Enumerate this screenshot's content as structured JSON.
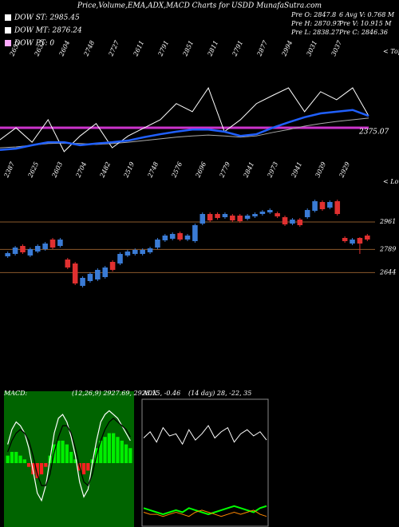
{
  "title": "Price,Volume,EMA,ADX,MACD Charts for USDD MunafaSutra.com",
  "legend": [
    {
      "label": "DOW ST: 2985.45",
      "color": "#ffffff"
    },
    {
      "label": "DOW MT: 2876.24",
      "color": "#ffffff"
    },
    {
      "label": "DOW PT: 0",
      "color": "#ffaaff"
    }
  ],
  "info": [
    "Pre O: 2847.8",
    "6 Avg V: 0.768 M",
    "Pre H: 2870.97",
    "Pre V: 10.915 M",
    "Pre L: 2838.27",
    "Pre C: 2846.36"
  ],
  "chart_data": [
    {
      "type": "line",
      "ylim": [
        2300,
        2563
      ],
      "series": [
        {
          "color": "#aaaaaa",
          "values": [
            2328,
            2330,
            2334,
            2338,
            2339,
            2338,
            2336,
            2338,
            2341,
            2345,
            2349,
            2353,
            2356,
            2358,
            2356,
            2353,
            2356,
            2364,
            2371,
            2379,
            2385,
            2390,
            2394,
            2398
          ]
        },
        {
          "color": "#ffffff",
          "values": [
            2347,
            2375,
            2341,
            2394,
            2319,
            2356,
            2385,
            2328,
            2356,
            2375,
            2394,
            2432,
            2413,
            2469,
            2366,
            2394,
            2432,
            2451,
            2469,
            2413,
            2460,
            2441,
            2469,
            2403
          ]
        },
        {
          "color": "#2060ff",
          "values": [
            2323,
            2326,
            2334,
            2341,
            2341,
            2334,
            2338,
            2341,
            2345,
            2353,
            2360,
            2366,
            2371,
            2371,
            2366,
            2356,
            2360,
            2375,
            2388,
            2400,
            2409,
            2413,
            2417,
            2403
          ]
        }
      ],
      "hline": {
        "value": 2375.07,
        "color": "#cc33cc"
      },
      "tops": [
        2652,
        2632,
        2604,
        2748,
        2727,
        2611,
        2791,
        2851,
        2811,
        2791,
        2877,
        2994,
        3031,
        3037
      ],
      "tops_label": "< Tops"
    },
    {
      "type": "candlestick",
      "ylim": [
        2476,
        3226
      ],
      "yticks": [
        2961,
        2789,
        2644
      ],
      "grid": true,
      "grid_color": "#8b5a2b",
      "up_color": "#3a7bd5",
      "down_color": "#e03030",
      "candles": [
        [
          2746,
          2776,
          2736,
          2766
        ],
        [
          2761,
          2811,
          2751,
          2801
        ],
        [
          2811,
          2821,
          2761,
          2771
        ],
        [
          2751,
          2801,
          2741,
          2791
        ],
        [
          2776,
          2821,
          2766,
          2811
        ],
        [
          2791,
          2836,
          2781,
          2826
        ],
        [
          2851,
          2861,
          2791,
          2801
        ],
        [
          2811,
          2861,
          2801,
          2851
        ],
        [
          2726,
          2736,
          2666,
          2676
        ],
        [
          2701,
          2711,
          2566,
          2576
        ],
        [
          2561,
          2621,
          2551,
          2611
        ],
        [
          2591,
          2646,
          2581,
          2636
        ],
        [
          2601,
          2671,
          2591,
          2661
        ],
        [
          2616,
          2686,
          2606,
          2676
        ],
        [
          2711,
          2721,
          2651,
          2661
        ],
        [
          2701,
          2771,
          2691,
          2761
        ],
        [
          2751,
          2786,
          2741,
          2776
        ],
        [
          2761,
          2796,
          2751,
          2786
        ],
        [
          2761,
          2796,
          2751,
          2786
        ],
        [
          2771,
          2806,
          2761,
          2796
        ],
        [
          2801,
          2861,
          2791,
          2851
        ],
        [
          2846,
          2886,
          2836,
          2876
        ],
        [
          2856,
          2896,
          2846,
          2886
        ],
        [
          2891,
          2901,
          2841,
          2851
        ],
        [
          2851,
          2886,
          2841,
          2876
        ],
        [
          2841,
          2951,
          2831,
          2941
        ],
        [
          2951,
          3021,
          2941,
          3011
        ],
        [
          3011,
          3021,
          2961,
          2971
        ],
        [
          3011,
          3021,
          2976,
          2986
        ],
        [
          2991,
          3021,
          2981,
          3011
        ],
        [
          3001,
          3011,
          2961,
          2971
        ],
        [
          3001,
          3011,
          2956,
          2966
        ],
        [
          2981,
          3011,
          2971,
          3001
        ],
        [
          2996,
          3021,
          2986,
          3011
        ],
        [
          3011,
          3036,
          3001,
          3026
        ],
        [
          3021,
          3046,
          3011,
          3036
        ],
        [
          3016,
          3026,
          2986,
          2996
        ],
        [
          2991,
          3001,
          2936,
          2946
        ],
        [
          2951,
          2986,
          2941,
          2976
        ],
        [
          2976,
          2986,
          2931,
          2941
        ],
        [
          2991,
          3046,
          2981,
          3036
        ],
        [
          3031,
          3101,
          3021,
          3091
        ],
        [
          3086,
          3096,
          3031,
          3041
        ],
        [
          3051,
          3096,
          3041,
          3086
        ],
        [
          3091,
          3101,
          3001,
          3011
        ],
        [
          2861,
          2871,
          2831,
          2841
        ],
        [
          2826,
          2861,
          2816,
          2851
        ],
        [
          2861,
          2866,
          2761,
          2826
        ],
        [
          2876,
          2886,
          2841,
          2851
        ]
      ],
      "lows": [
        2387,
        2625,
        2603,
        2704,
        2482,
        2519,
        2748,
        2576,
        2696,
        2779,
        2841,
        2973,
        2941,
        3039,
        2929
      ],
      "lows_label": "< Lows"
    },
    {
      "type": "macd",
      "title": "MACD:",
      "subtitle": "(12,26,9) 2927.69, 2928.15, -0.46",
      "ylim": [
        -1.6,
        1.6
      ],
      "histogram": [
        0.2,
        0.3,
        0.3,
        0.2,
        0.1,
        -0.1,
        -0.3,
        -0.4,
        -0.3,
        -0.1,
        0.2,
        0.5,
        0.6,
        0.6,
        0.5,
        0.3,
        0.1,
        -0.2,
        -0.3,
        -0.2,
        0.1,
        0.4,
        0.6,
        0.7,
        0.8,
        0.8,
        0.7,
        0.6,
        0.5,
        0.4
      ],
      "series": [
        {
          "color": "#ffffff",
          "values": [
            0.5,
            0.9,
            1.1,
            1.0,
            0.8,
            0.4,
            -0.2,
            -0.8,
            -1.0,
            -0.6,
            0.1,
            0.8,
            1.2,
            1.3,
            1.1,
            0.7,
            0.2,
            -0.5,
            -0.9,
            -0.7,
            0.0,
            0.6,
            1.1,
            1.3,
            1.4,
            1.3,
            1.2,
            1.0,
            0.8,
            0.6
          ]
        },
        {
          "color": "#000000",
          "values": [
            0.3,
            0.6,
            0.8,
            0.9,
            0.8,
            0.6,
            0.2,
            -0.3,
            -0.6,
            -0.6,
            -0.3,
            0.3,
            0.7,
            1.0,
            1.0,
            0.8,
            0.4,
            -0.1,
            -0.5,
            -0.6,
            -0.3,
            0.2,
            0.6,
            0.9,
            1.1,
            1.2,
            1.1,
            1.0,
            0.9,
            0.7
          ]
        }
      ]
    },
    {
      "type": "adx",
      "title": "ADX",
      "subtitle": "(14 day) 28, -22, 35",
      "ylim": [
        0,
        60
      ],
      "series": [
        {
          "color": "#ffffff",
          "values": [
            42,
            45,
            40,
            47,
            43,
            44,
            39,
            46,
            41,
            44,
            48,
            42,
            45,
            47,
            40,
            44,
            46,
            43,
            45,
            41
          ]
        },
        {
          "color": "#00ff00",
          "values": [
            8,
            7,
            6,
            5,
            6,
            7,
            6,
            8,
            7,
            6,
            5,
            6,
            7,
            8,
            9,
            8,
            7,
            6,
            8,
            9
          ]
        },
        {
          "color": "#ff8800",
          "values": [
            6,
            5,
            5,
            4,
            5,
            6,
            5,
            4,
            6,
            7,
            6,
            5,
            4,
            5,
            6,
            5,
            6,
            7,
            5,
            4
          ]
        }
      ]
    }
  ]
}
